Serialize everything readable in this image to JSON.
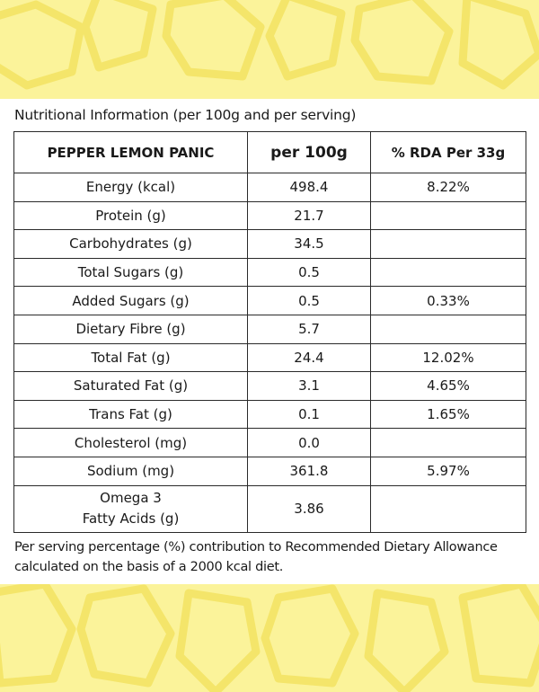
{
  "colors": {
    "background": "#fbf39a",
    "pattern": "#f4e56a",
    "panel": "#ffffff",
    "border": "#2a2a2a",
    "text": "#1a1a1a"
  },
  "title": "Nutritional Information (per 100g and per serving)",
  "table": {
    "headers": [
      "PEPPER LEMON PANIC",
      "per 100g",
      "% RDA Per 33g"
    ],
    "rows": [
      {
        "nutrient": "Energy (kcal)",
        "per100g": "498.4",
        "rda": "8.22%"
      },
      {
        "nutrient": "Protein (g)",
        "per100g": "21.7",
        "rda": ""
      },
      {
        "nutrient": "Carbohydrates (g)",
        "per100g": "34.5",
        "rda": ""
      },
      {
        "nutrient": "Total Sugars (g)",
        "per100g": "0.5",
        "rda": ""
      },
      {
        "nutrient": "Added Sugars (g)",
        "per100g": "0.5",
        "rda": "0.33%"
      },
      {
        "nutrient": "Dietary Fibre (g)",
        "per100g": "5.7",
        "rda": ""
      },
      {
        "nutrient": "Total Fat (g)",
        "per100g": "24.4",
        "rda": "12.02%"
      },
      {
        "nutrient": "Saturated Fat (g)",
        "per100g": "3.1",
        "rda": "4.65%"
      },
      {
        "nutrient": "Trans Fat (g)",
        "per100g": "0.1",
        "rda": "1.65%"
      },
      {
        "nutrient": "Cholesterol (mg)",
        "per100g": "0.0",
        "rda": ""
      },
      {
        "nutrient": "Sodium (mg)",
        "per100g": "361.8",
        "rda": "5.97%"
      }
    ],
    "last_row": {
      "nutrient_line1": "Omega 3",
      "nutrient_line2": "Fatty Acids (g)",
      "per100g": "3.86",
      "rda": ""
    }
  },
  "footer": {
    "line1": "Per serving percentage (%) contribution to Recommended Dietary Allowance",
    "line2": "calculated on the basis of a 2000 kcal diet."
  }
}
